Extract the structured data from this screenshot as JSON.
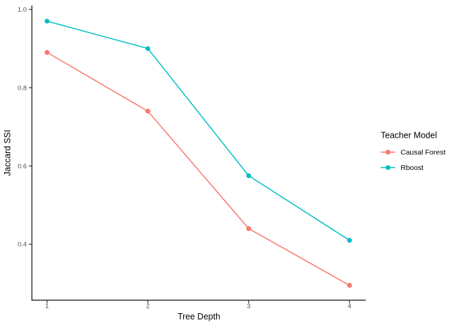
{
  "chart_data": {
    "type": "line",
    "title": "",
    "xlabel": "Tree Depth",
    "ylabel": "Jaccard SSI",
    "legend_title": "Teacher Model",
    "legend_position": "right",
    "grid": false,
    "background": "#FFFFFF",
    "axis_color": "#333333",
    "tick_label_color": "#4D4D4D",
    "x": [
      1,
      2,
      3,
      4
    ],
    "x_tick_labels": [
      "1",
      "2",
      "3",
      "4"
    ],
    "y_ticks": [
      0.4,
      0.6,
      0.8,
      1.0
    ],
    "y_tick_labels": [
      "0.4",
      "0.6",
      "0.8",
      "1.0"
    ],
    "xlim": [
      0.85,
      4.16
    ],
    "ylim": [
      0.257,
      1.01
    ],
    "series": [
      {
        "name": "Causal Forest",
        "color": "#F8766D",
        "values": [
          0.89,
          0.74,
          0.44,
          0.295
        ]
      },
      {
        "name": "Rboost",
        "color": "#00BFC4",
        "values": [
          0.97,
          0.9,
          0.575,
          0.41
        ]
      }
    ],
    "marker": "circle",
    "marker_radius": 3.5,
    "line_width": 1.5
  }
}
